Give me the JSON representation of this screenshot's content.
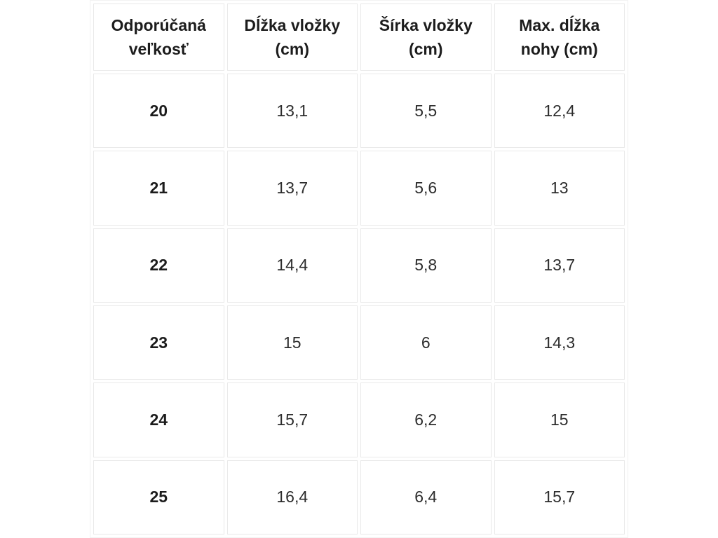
{
  "chart_data": {
    "type": "table",
    "columns": [
      "Odporúčaná veľkosť",
      "Dĺžka vložky (cm)",
      "Šírka vložky (cm)",
      "Max. dĺžka nohy (cm)"
    ],
    "rows": [
      [
        "20",
        "13,1",
        "5,5",
        "12,4"
      ],
      [
        "21",
        "13,7",
        "5,6",
        "13"
      ],
      [
        "22",
        "14,4",
        "5,8",
        "13,7"
      ],
      [
        "23",
        "15",
        "6",
        "14,3"
      ],
      [
        "24",
        "15,7",
        "6,2",
        "15"
      ],
      [
        "25",
        "16,4",
        "6,4",
        "15,7"
      ]
    ],
    "title": "",
    "layout": {
      "grid": "separated-cell-borders",
      "header_row": true,
      "bold_first_column": true
    }
  },
  "colors": {
    "background": "#ffffff",
    "cell_background": "#ffffff",
    "border": "#e9e9e9",
    "header_text": "#1c1c1c",
    "value_text": "#2d2d2d"
  }
}
